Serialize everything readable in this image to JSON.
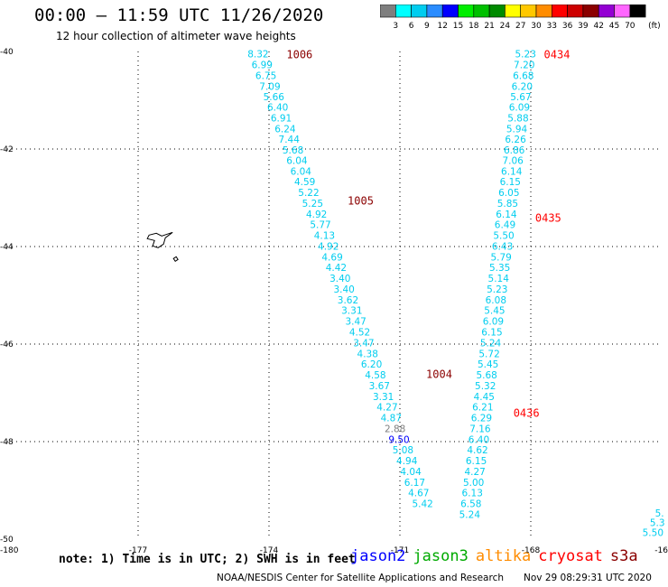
{
  "title": "00:00 – 11:59 UTC 11/26/2020",
  "subtitle": "12 hour collection of altimeter wave heights",
  "colorbar": {
    "labels": [
      "3",
      "6",
      "9",
      "12",
      "15",
      "18",
      "21",
      "24",
      "27",
      "30",
      "33",
      "36",
      "39",
      "42",
      "45",
      "70"
    ],
    "unit": "(ft)",
    "colors": [
      "#7f7f7f",
      "#00ffff",
      "#00cdef",
      "#2a8cff",
      "#0000ff",
      "#00ee00",
      "#00c000",
      "#008b00",
      "#ffff00",
      "#ffc800",
      "#ff8c00",
      "#ff0000",
      "#cd0000",
      "#8b0000",
      "#9400d3",
      "#ff66ff",
      "#000000"
    ]
  },
  "map": {
    "lon_ticks": [
      {
        "value": -180,
        "label": "-180"
      },
      {
        "value": -177,
        "label": "-177"
      },
      {
        "value": -174,
        "label": "-174"
      },
      {
        "value": -171,
        "label": "-171"
      },
      {
        "value": -168,
        "label": "-168"
      },
      {
        "value": -165,
        "label": "-16"
      }
    ],
    "lat_ticks": [
      {
        "value": -40,
        "label": "-40"
      },
      {
        "value": -42,
        "label": "-42"
      },
      {
        "value": -44,
        "label": "-44"
      },
      {
        "value": -46,
        "label": "-46"
      },
      {
        "value": -48,
        "label": "-48"
      },
      {
        "value": -50,
        "label": "-50"
      }
    ],
    "tracks": [
      {
        "color": "#00cdef",
        "points": [
          [
            -174.25,
            -40.05,
            "8.32"
          ],
          [
            -174.16,
            -40.27,
            "6.99"
          ],
          [
            -174.07,
            -40.49,
            "6.75"
          ],
          [
            -173.98,
            -40.71,
            "7.09"
          ],
          [
            -173.89,
            -40.93,
            "5.66"
          ],
          [
            -173.8,
            -41.14,
            "6.40"
          ],
          [
            -173.72,
            -41.36,
            "6.91"
          ],
          [
            -173.63,
            -41.58,
            "6.24"
          ],
          [
            -173.54,
            -41.8,
            "7.44"
          ],
          [
            -173.45,
            -42.02,
            "5.68"
          ],
          [
            -173.36,
            -42.23,
            "6.04"
          ],
          [
            -173.27,
            -42.45,
            "6.04"
          ],
          [
            -173.18,
            -42.67,
            "4.59"
          ],
          [
            -173.09,
            -42.89,
            "5.22"
          ],
          [
            -173.0,
            -43.11,
            "5.25"
          ],
          [
            -172.91,
            -43.33,
            "4.92"
          ],
          [
            -172.82,
            -43.55,
            "5.77"
          ],
          [
            -172.73,
            -43.77,
            "4.13"
          ],
          [
            -172.64,
            -43.99,
            "4.92"
          ],
          [
            -172.55,
            -44.21,
            "4.69"
          ],
          [
            -172.46,
            -44.43,
            "4.42"
          ],
          [
            -172.37,
            -44.65,
            "3.40"
          ],
          [
            -172.28,
            -44.87,
            "3.40"
          ],
          [
            -172.19,
            -45.09,
            "3.62"
          ],
          [
            -172.1,
            -45.31,
            "3.31"
          ],
          [
            -172.01,
            -45.53,
            "3.47"
          ],
          [
            -171.92,
            -45.75,
            "4.52"
          ],
          [
            -171.83,
            -45.97,
            "3.47"
          ],
          [
            -171.74,
            -46.19,
            "4.38"
          ],
          [
            -171.65,
            -46.41,
            "6.20"
          ],
          [
            -171.56,
            -46.63,
            "4.58"
          ],
          [
            -171.47,
            -46.85,
            "3.67"
          ],
          [
            -171.38,
            -47.07,
            "3.31"
          ],
          [
            -171.29,
            -47.29,
            "4.27"
          ],
          [
            -171.2,
            -47.51,
            "4.87"
          ]
        ]
      },
      {
        "color": "#7f7f7f",
        "points": [
          [
            -171.11,
            -47.73,
            "2.88"
          ]
        ]
      },
      {
        "color": "#0000ff",
        "points": [
          [
            -171.02,
            -47.95,
            "9.50"
          ]
        ]
      },
      {
        "color": "#00cdef",
        "points": [
          [
            -170.93,
            -48.17,
            "5.08"
          ],
          [
            -170.84,
            -48.39,
            "4.94"
          ],
          [
            -170.75,
            -48.61,
            "4.04"
          ],
          [
            -170.66,
            -48.83,
            "6.17"
          ],
          [
            -170.57,
            -49.05,
            "4.67"
          ],
          [
            -170.48,
            -49.27,
            "5.42"
          ]
        ]
      },
      {
        "color": "#00cdef",
        "points": [
          [
            -168.12,
            -40.05,
            "5.23"
          ],
          [
            -168.15,
            -40.27,
            "7.20"
          ],
          [
            -168.17,
            -40.49,
            "6.68"
          ],
          [
            -168.2,
            -40.71,
            "6.20"
          ],
          [
            -168.23,
            -40.93,
            "5.67"
          ],
          [
            -168.26,
            -41.14,
            "6.09"
          ],
          [
            -168.29,
            -41.36,
            "5.88"
          ],
          [
            -168.32,
            -41.58,
            "5.94"
          ],
          [
            -168.35,
            -41.8,
            "6.26"
          ],
          [
            -168.38,
            -42.02,
            "6.86"
          ],
          [
            -168.41,
            -42.23,
            "7.06"
          ],
          [
            -168.44,
            -42.45,
            "6.14"
          ],
          [
            -168.47,
            -42.67,
            "6.15"
          ],
          [
            -168.5,
            -42.89,
            "6.05"
          ],
          [
            -168.53,
            -43.11,
            "5.85"
          ],
          [
            -168.56,
            -43.33,
            "6.14"
          ],
          [
            -168.59,
            -43.55,
            "6.49"
          ],
          [
            -168.62,
            -43.77,
            "5.50"
          ],
          [
            -168.65,
            -43.99,
            "6.43"
          ],
          [
            -168.68,
            -44.21,
            "5.79"
          ],
          [
            -168.71,
            -44.43,
            "5.35"
          ],
          [
            -168.74,
            -44.65,
            "5.14"
          ],
          [
            -168.77,
            -44.87,
            "5.23"
          ],
          [
            -168.8,
            -45.09,
            "6.08"
          ],
          [
            -168.83,
            -45.31,
            "5.45"
          ],
          [
            -168.86,
            -45.53,
            "6.09"
          ],
          [
            -168.89,
            -45.75,
            "6.15"
          ],
          [
            -168.92,
            -45.97,
            "5.24"
          ],
          [
            -168.95,
            -46.19,
            "5.72"
          ],
          [
            -168.98,
            -46.41,
            "5.45"
          ],
          [
            -169.01,
            -46.63,
            "5.68"
          ],
          [
            -169.04,
            -46.85,
            "5.32"
          ],
          [
            -169.07,
            -47.07,
            "4.45"
          ],
          [
            -169.1,
            -47.29,
            "6.21"
          ],
          [
            -169.13,
            -47.51,
            "6.29"
          ],
          [
            -169.16,
            -47.73,
            "7.16"
          ],
          [
            -169.19,
            -47.95,
            "6.40"
          ],
          [
            -169.22,
            -48.17,
            "4.62"
          ],
          [
            -169.25,
            -48.39,
            "6.15"
          ],
          [
            -169.28,
            -48.61,
            "4.27"
          ],
          [
            -169.31,
            -48.83,
            "5.00"
          ],
          [
            -169.34,
            -49.05,
            "6.13"
          ],
          [
            -169.37,
            -49.27,
            "6.58"
          ],
          [
            -169.4,
            -49.49,
            "5.24"
          ]
        ]
      },
      {
        "color": "#00cdef",
        "points": [
          [
            -165.05,
            -49.46,
            "5."
          ],
          [
            -165.1,
            -49.66,
            "5.3"
          ],
          [
            -165.2,
            -49.86,
            "5.50"
          ]
        ]
      }
    ],
    "time_labels": [
      {
        "lon": -173.3,
        "lat": -40.05,
        "text": "1006",
        "color": "#8b0000"
      },
      {
        "lon": -171.9,
        "lat": -43.05,
        "text": "1005",
        "color": "#8b0000"
      },
      {
        "lon": -170.1,
        "lat": -46.6,
        "text": "1004",
        "color": "#8b0000"
      },
      {
        "lon": -167.4,
        "lat": -40.05,
        "text": "0434",
        "color": "#ff0000"
      },
      {
        "lon": -167.6,
        "lat": -43.4,
        "text": "0435",
        "color": "#ff0000"
      },
      {
        "lon": -168.1,
        "lat": -47.4,
        "text": "0436",
        "color": "#ff0000"
      }
    ]
  },
  "note": "note: 1) Time is in UTC; 2) SWH is in feet",
  "legend": [
    {
      "name": "jason2",
      "color": "#0000ff"
    },
    {
      "name": "jason3",
      "color": "#00aa00"
    },
    {
      "name": "altika",
      "color": "#ff8c00"
    },
    {
      "name": "cryosat",
      "color": "#ff0000"
    },
    {
      "name": "s3a",
      "color": "#8b0000"
    }
  ],
  "credit": "NOAA/NESDIS Center for Satellite Applications and Research",
  "timestamp": "Nov 29 08:29:31 UTC 2020"
}
